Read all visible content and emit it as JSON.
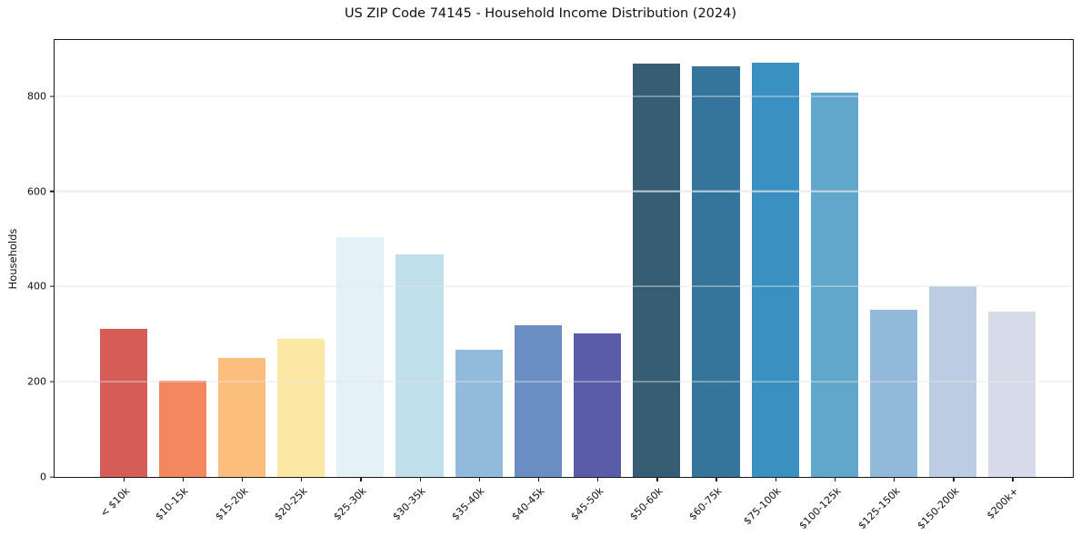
{
  "figure": {
    "background": "#ffffff",
    "axis_color": "#1a1a1a",
    "grid_color": "#e5e5e5"
  },
  "chart_data": {
    "type": "bar",
    "title": "US ZIP Code 74145 - Household Income Distribution (2024)",
    "xlabel": "",
    "ylabel": "Households",
    "categories": [
      "< $10k",
      "$10-15k",
      "$15-20k",
      "$20-25k",
      "$25-30k",
      "$30-35k",
      "$35-40k",
      "$40-45k",
      "$45-50k",
      "$50-60k",
      "$60-75k",
      "$75-100k",
      "$100-125k",
      "$125-150k",
      "$150-200k",
      "$200k+"
    ],
    "values": [
      312,
      203,
      250,
      291,
      503,
      468,
      267,
      319,
      301,
      868,
      862,
      871,
      807,
      352,
      400,
      347
    ],
    "bar_colors": [
      "#d65d57",
      "#f4875f",
      "#fbbe7c",
      "#fce8a4",
      "#e4f1f6",
      "#bfdfeb",
      "#92bbdb",
      "#6a8ec4",
      "#5a5caa",
      "#365d73",
      "#35749b",
      "#3990c1",
      "#61a7cc",
      "#92b8da",
      "#bccde3",
      "#d7dae8"
    ],
    "yticks": [
      0,
      200,
      400,
      600,
      800
    ],
    "ylim": [
      0,
      918
    ],
    "grid": true,
    "grid_axis": "y",
    "legend_position": "none",
    "x_tick_rotation_deg": 45
  }
}
